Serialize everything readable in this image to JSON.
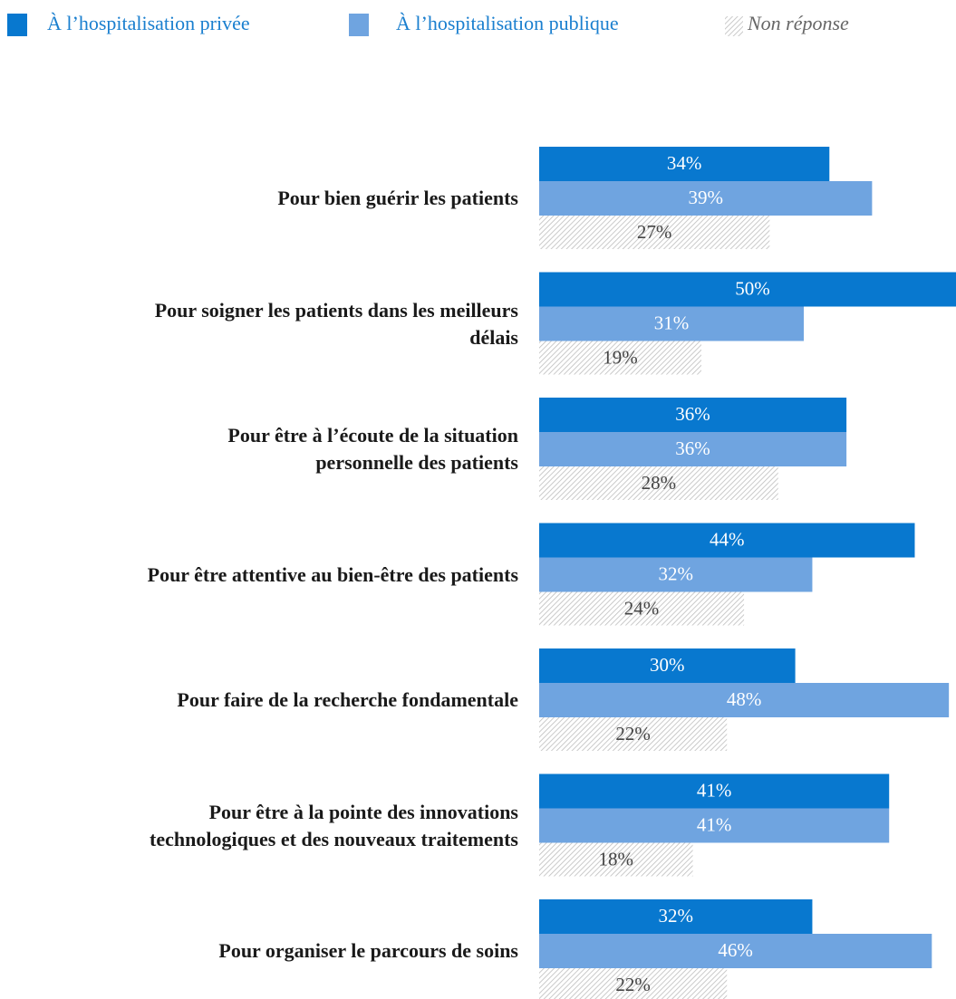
{
  "chart_data": {
    "type": "bar",
    "orientation": "horizontal",
    "categories": [
      "Pour bien guérir les patients",
      "Pour soigner les patients dans les meilleurs\ndélais",
      "Pour être à l’écoute de la situation\npersonnelle des patients",
      "Pour être attentive au bien-être des patients",
      "Pour faire de la recherche fondamentale",
      "Pour être à la pointe des innovations\ntechnologiques et des nouveaux traitements",
      "Pour organiser le parcours de soins"
    ],
    "series": [
      {
        "name": "À l’hospitalisation privée",
        "color": "#0878cf",
        "values": [
          34,
          50,
          36,
          44,
          30,
          41,
          32
        ],
        "value_labels": [
          "34%",
          "50%",
          "36%",
          "44%",
          "30%",
          "41%",
          "32%"
        ]
      },
      {
        "name": "À l’hospitalisation publique",
        "color": "#6fa4e0",
        "values": [
          39,
          31,
          36,
          32,
          48,
          41,
          46
        ],
        "value_labels": [
          "39%",
          "31%",
          "36%",
          "32%",
          "48%",
          "41%",
          "46%"
        ]
      },
      {
        "name": "Non réponse",
        "color": "hatch",
        "values": [
          27,
          19,
          28,
          24,
          22,
          18,
          22
        ],
        "value_labels": [
          "27%",
          "19%",
          "28%",
          "24%",
          "22%",
          "18%",
          "22%"
        ]
      }
    ],
    "legend": "top"
  }
}
